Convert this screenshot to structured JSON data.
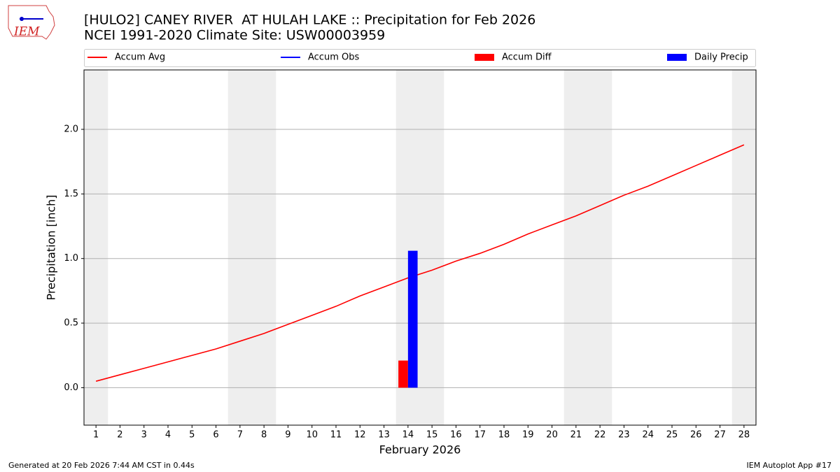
{
  "chart_data": {
    "type": "combo",
    "logo_text": "IEM",
    "title": "[HULO2] CANEY RIVER  AT HULAH LAKE :: Precipitation for Feb 2026",
    "subtitle": "NCEI 1991-2020 Climate Site: USW00003959",
    "y_label": "Precipitation [inch]",
    "x_label": "February 2026",
    "footer_left": "Generated at 20 Feb 2026 7:44 AM CST in 0.44s",
    "footer_right": "IEM Autoplot App #17",
    "x": [
      1,
      2,
      3,
      4,
      5,
      6,
      7,
      8,
      9,
      10,
      11,
      12,
      13,
      14,
      15,
      16,
      17,
      18,
      19,
      20,
      21,
      22,
      23,
      24,
      25,
      26,
      27,
      28
    ],
    "xlim": [
      0.5,
      28.5
    ],
    "xticks": [
      1,
      2,
      3,
      4,
      5,
      6,
      7,
      8,
      9,
      10,
      11,
      12,
      13,
      14,
      15,
      16,
      17,
      18,
      19,
      20,
      21,
      22,
      23,
      24,
      25,
      26,
      27,
      28
    ],
    "ylim": [
      -0.29,
      2.46
    ],
    "yticks": [
      {
        "value": 0,
        "label": "0.0"
      },
      0.5,
      {
        "value": 1,
        "label": "1.0"
      },
      1.5,
      {
        "value": 2,
        "label": "2.0"
      }
    ],
    "grid": true,
    "shaded_days": [
      1,
      7,
      8,
      14,
      15,
      21,
      22,
      28
    ],
    "shade_color": "#eeeeee",
    "series": [
      {
        "name": "Accum Avg",
        "kind": "line",
        "color": "#ff0000",
        "values": [
          0.05,
          0.1,
          0.15,
          0.2,
          0.25,
          0.3,
          0.36,
          0.42,
          0.49,
          0.56,
          0.63,
          0.71,
          0.78,
          0.85,
          0.91,
          0.98,
          1.04,
          1.11,
          1.19,
          1.26,
          1.33,
          1.41,
          1.49,
          1.56,
          1.64,
          1.72,
          1.8,
          1.88
        ]
      },
      {
        "name": "Accum Obs",
        "kind": "line",
        "color": "#0000ff",
        "values": [
          null,
          null,
          null,
          null,
          null,
          null,
          null,
          null,
          null,
          null,
          null,
          null,
          null,
          null,
          null,
          null,
          null,
          null,
          null,
          null,
          null,
          null,
          null,
          null,
          null,
          null,
          null,
          null
        ]
      },
      {
        "name": "Accum Diff",
        "kind": "bar",
        "color": "#ff0000",
        "values": [
          null,
          null,
          null,
          null,
          null,
          null,
          null,
          null,
          null,
          null,
          null,
          null,
          null,
          0.21,
          null,
          null,
          null,
          null,
          null,
          null,
          null,
          null,
          null,
          null,
          null,
          null,
          null,
          null
        ]
      },
      {
        "name": "Daily Precip",
        "kind": "bar",
        "color": "#0000ff",
        "values": [
          null,
          null,
          null,
          null,
          null,
          null,
          null,
          null,
          null,
          null,
          null,
          null,
          null,
          1.06,
          null,
          null,
          null,
          null,
          null,
          null,
          null,
          null,
          null,
          null,
          null,
          null,
          null,
          null
        ]
      }
    ]
  }
}
